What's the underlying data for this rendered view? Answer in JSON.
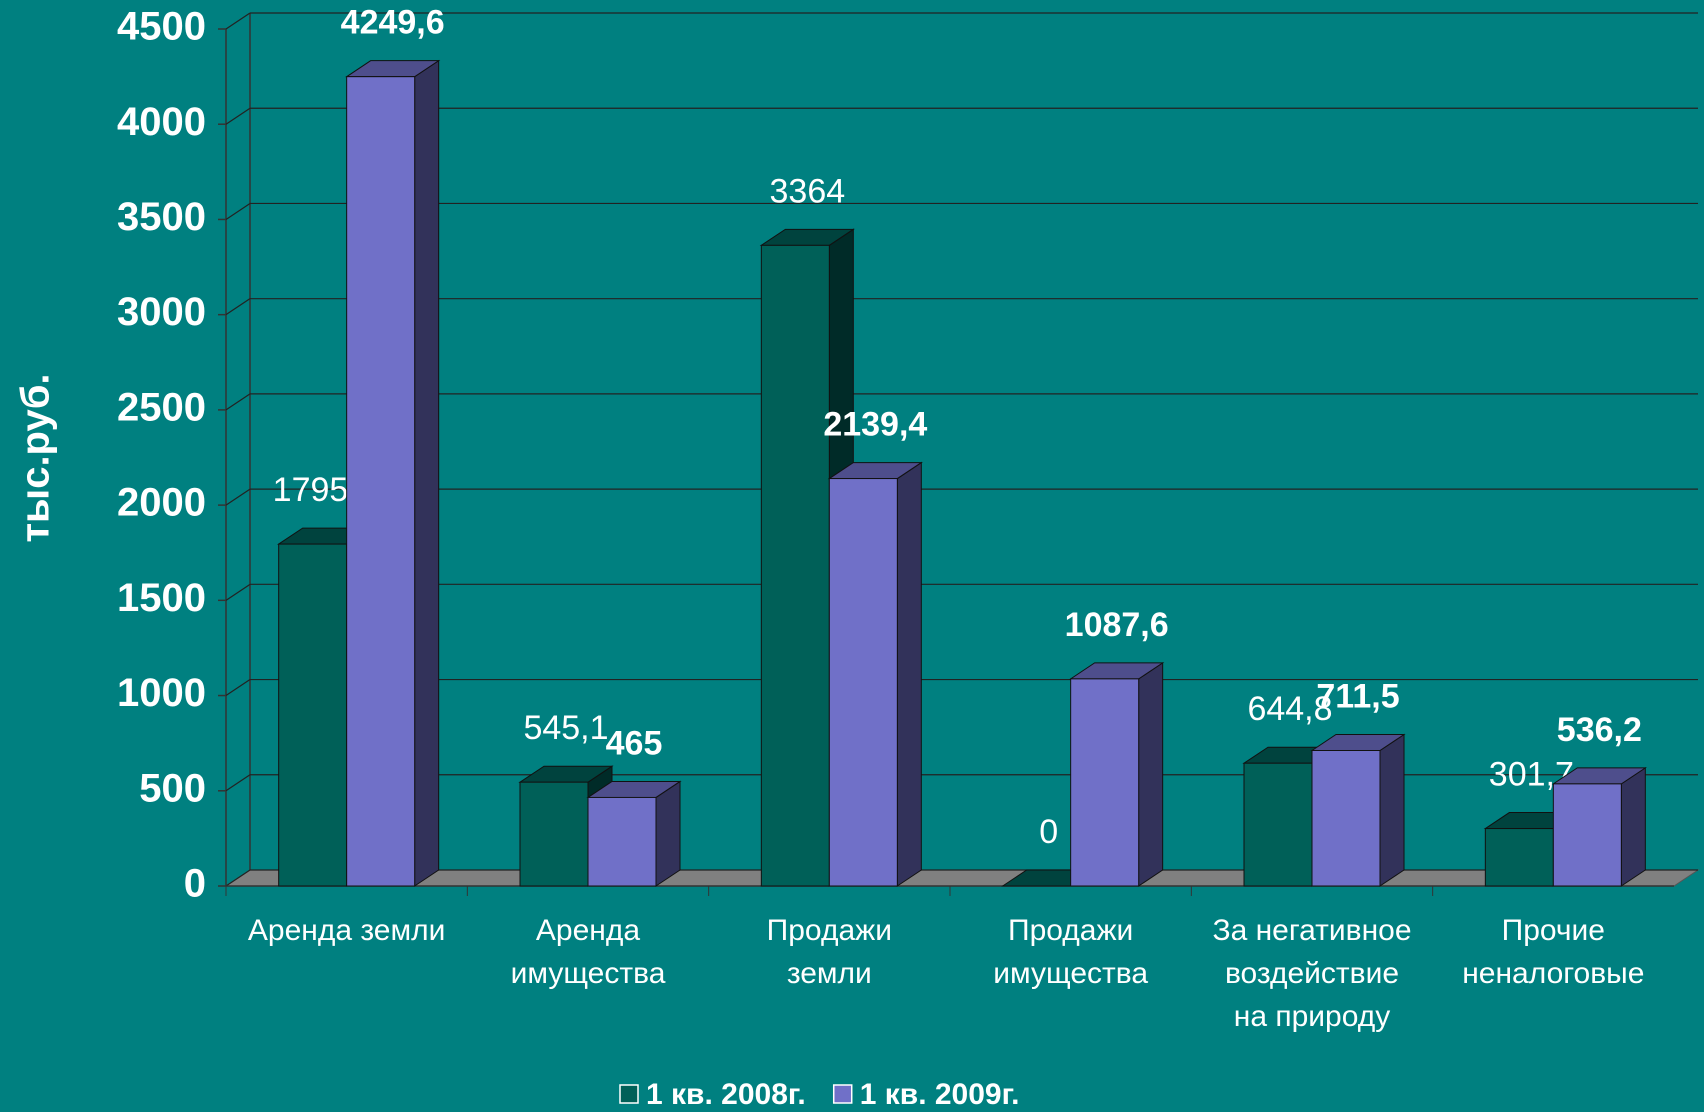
{
  "chart_data": {
    "type": "bar3d",
    "ylabel": "тыс.руб.",
    "categories": [
      "Аренда земли",
      "Аренда\nимущества",
      "Продажи\nземли",
      "Продажи\nимущества",
      "За негативное\nвоздействие\nна природу",
      "Прочие\nненалоговые"
    ],
    "series": [
      {
        "name": "1 кв. 2008г.",
        "color": "#006058",
        "values": [
          1795.3,
          545.1,
          3364,
          0,
          644.8,
          301.7
        ],
        "value_labels": [
          "1795,3",
          "545,1",
          "3364",
          "0",
          "644,8",
          "301,7"
        ]
      },
      {
        "name": "1 кв. 2009г.",
        "color": "#7070c8",
        "values": [
          4249.6,
          465,
          2139.4,
          1087.6,
          711.5,
          536.2
        ],
        "value_labels": [
          "4249,6",
          "465",
          "2139,4",
          "1087,6",
          "711,5",
          "536,2"
        ]
      }
    ],
    "ylim": [
      0,
      4500
    ],
    "yticks": [
      0,
      500,
      1000,
      1500,
      2000,
      2500,
      3000,
      3500,
      4000,
      4500
    ],
    "grid": true,
    "legend": "bottom"
  }
}
